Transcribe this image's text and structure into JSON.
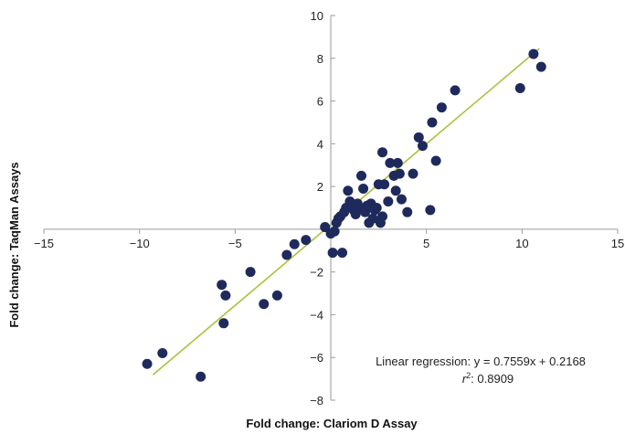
{
  "chart_data": {
    "type": "scatter",
    "xlabel": "Fold change: Clariom D Assay",
    "ylabel": "Fold change: TaqMan Assays",
    "xlim": [
      -15,
      15
    ],
    "ylim": [
      -8,
      10
    ],
    "x_ticks": [
      -15,
      -10,
      -5,
      5,
      10,
      15
    ],
    "y_ticks": [
      -8,
      -6,
      -4,
      -2,
      2,
      4,
      6,
      8,
      10
    ],
    "x_tick_labels": [
      "−15",
      "−10",
      "−5",
      "5",
      "10",
      "15"
    ],
    "y_tick_labels": [
      "−8",
      "−6",
      "−4",
      "−2",
      "2",
      "4",
      "6",
      "8",
      "10"
    ],
    "grid": false,
    "legend": "none",
    "colors": {
      "points": "#1f2a5c",
      "trendline": "#a9c23f",
      "axis": "#9a9a9a"
    },
    "series": [
      {
        "values": [
          {
            "x": -9.6,
            "y": -6.3
          },
          {
            "x": -8.8,
            "y": -5.8
          },
          {
            "x": -6.8,
            "y": -6.9
          },
          {
            "x": -5.7,
            "y": -2.6
          },
          {
            "x": -5.5,
            "y": -3.1
          },
          {
            "x": -5.6,
            "y": -4.4
          },
          {
            "x": -4.2,
            "y": -2.0
          },
          {
            "x": -3.5,
            "y": -3.5
          },
          {
            "x": -2.8,
            "y": -3.1
          },
          {
            "x": -2.3,
            "y": -1.2
          },
          {
            "x": -1.9,
            "y": -0.7
          },
          {
            "x": -1.3,
            "y": -0.5
          },
          {
            "x": -0.3,
            "y": 0.1
          },
          {
            "x": 0.0,
            "y": -0.2
          },
          {
            "x": 0.1,
            "y": -1.1
          },
          {
            "x": 0.2,
            "y": -0.1
          },
          {
            "x": 0.3,
            "y": 0.3
          },
          {
            "x": 0.4,
            "y": 0.5
          },
          {
            "x": 0.5,
            "y": 0.6
          },
          {
            "x": 0.6,
            "y": -1.1
          },
          {
            "x": 0.7,
            "y": 0.8
          },
          {
            "x": 0.8,
            "y": 1.0
          },
          {
            "x": 0.9,
            "y": 1.8
          },
          {
            "x": 1.0,
            "y": 1.3
          },
          {
            "x": 1.1,
            "y": 1.0
          },
          {
            "x": 1.2,
            "y": 0.9
          },
          {
            "x": 1.3,
            "y": 0.7
          },
          {
            "x": 1.4,
            "y": 1.2
          },
          {
            "x": 1.5,
            "y": 1.0
          },
          {
            "x": 1.6,
            "y": 2.5
          },
          {
            "x": 1.7,
            "y": 1.9
          },
          {
            "x": 1.8,
            "y": 0.8
          },
          {
            "x": 1.9,
            "y": 1.1
          },
          {
            "x": 2.0,
            "y": 0.3
          },
          {
            "x": 2.1,
            "y": 1.2
          },
          {
            "x": 2.2,
            "y": 0.5
          },
          {
            "x": 2.3,
            "y": 0.9
          },
          {
            "x": 2.4,
            "y": 1.0
          },
          {
            "x": 2.5,
            "y": 2.1
          },
          {
            "x": 2.6,
            "y": 0.3
          },
          {
            "x": 2.7,
            "y": 0.6
          },
          {
            "x": 2.7,
            "y": 3.6
          },
          {
            "x": 2.8,
            "y": 2.1
          },
          {
            "x": 3.0,
            "y": 1.3
          },
          {
            "x": 3.1,
            "y": 3.1
          },
          {
            "x": 3.3,
            "y": 2.5
          },
          {
            "x": 3.4,
            "y": 1.8
          },
          {
            "x": 3.5,
            "y": 3.1
          },
          {
            "x": 3.6,
            "y": 2.6
          },
          {
            "x": 3.7,
            "y": 1.4
          },
          {
            "x": 4.0,
            "y": 0.8
          },
          {
            "x": 4.3,
            "y": 2.6
          },
          {
            "x": 4.6,
            "y": 4.3
          },
          {
            "x": 4.8,
            "y": 3.9
          },
          {
            "x": 5.2,
            "y": 0.9
          },
          {
            "x": 5.3,
            "y": 5.0
          },
          {
            "x": 5.5,
            "y": 3.2
          },
          {
            "x": 5.8,
            "y": 5.7
          },
          {
            "x": 6.5,
            "y": 6.5
          },
          {
            "x": 9.9,
            "y": 6.6
          },
          {
            "x": 10.6,
            "y": 8.2
          },
          {
            "x": 11.0,
            "y": 7.6
          }
        ]
      }
    ],
    "trendline": {
      "slope": 0.7559,
      "intercept": 0.2168,
      "x_range": [
        -9.3,
        10.9
      ]
    },
    "annotation": {
      "regression_text": "Linear regression: y = 0.7559x + 0.2168",
      "r2_symbol": "r",
      "r2_sup": "2",
      "r2_value": ": 0.8909"
    }
  }
}
